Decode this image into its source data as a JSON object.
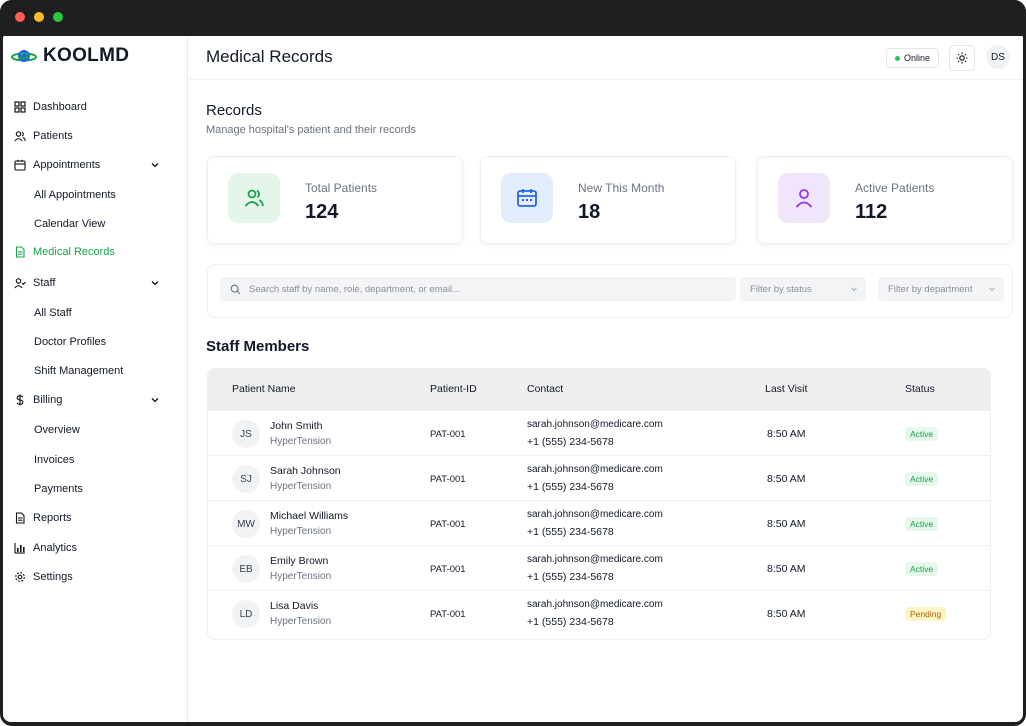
{
  "brand": {
    "name": "KOOLMD"
  },
  "sidebar": {
    "items": [
      {
        "label": "Dashboard",
        "icon": "grid-icon"
      },
      {
        "label": "Patients",
        "icon": "users-icon"
      },
      {
        "label": "Appointments",
        "icon": "calendar-icon",
        "children": [
          "All Appointments",
          "Calendar View"
        ]
      },
      {
        "label": "Medical Records",
        "icon": "file-icon",
        "active": true
      },
      {
        "label": "Staff",
        "icon": "user-check-icon",
        "children": [
          "All Staff",
          "Doctor Profiles",
          "Shift Management"
        ]
      },
      {
        "label": "Billing",
        "icon": "dollar-icon",
        "children": [
          "Overview",
          "Invoices",
          "Payments"
        ]
      },
      {
        "label": "Reports",
        "icon": "report-icon"
      },
      {
        "label": "Analytics",
        "icon": "chart-icon"
      },
      {
        "label": "Settings",
        "icon": "gear-icon"
      }
    ]
  },
  "header": {
    "title": "Medical Records",
    "status": "Online",
    "avatar": "DS"
  },
  "records": {
    "title": "Records",
    "subtitle": "Manage hospital's patient and their records"
  },
  "stats": [
    {
      "label": "Total Patients",
      "value": "124",
      "color": "#16a34a"
    },
    {
      "label": "New This Month",
      "value": "18",
      "color": "#2563eb"
    },
    {
      "label": "Active Patients",
      "value": "112",
      "color": "#9333ea"
    }
  ],
  "filters": {
    "search_placeholder": "Search staff by name, role, department, or email...",
    "status": "Filter by status",
    "department": "Filter by department"
  },
  "members": {
    "title": "Staff Members",
    "columns": [
      "Patient Name",
      "Patient-ID",
      "Contact",
      "Last Visit",
      "Status"
    ],
    "rows": [
      {
        "initials": "JS",
        "name": "John Smith",
        "condition": "HyperTension",
        "id": "PAT-001",
        "email": "sarah.johnson@medicare.com",
        "phone": "+1 (555) 234-5678",
        "last_visit": "8:50 AM",
        "status": "Active"
      },
      {
        "initials": "SJ",
        "name": "Sarah Johnson",
        "condition": "HyperTension",
        "id": "PAT-001",
        "email": "sarah.johnson@medicare.com",
        "phone": "+1 (555) 234-5678",
        "last_visit": "8:50 AM",
        "status": "Active"
      },
      {
        "initials": "MW",
        "name": "Michael Williams",
        "condition": "HyperTension",
        "id": "PAT-001",
        "email": "sarah.johnson@medicare.com",
        "phone": "+1 (555) 234-5678",
        "last_visit": "8:50 AM",
        "status": "Active"
      },
      {
        "initials": "EB",
        "name": "Emily Brown",
        "condition": "HyperTension",
        "id": "PAT-001",
        "email": "sarah.johnson@medicare.com",
        "phone": "+1 (555) 234-5678",
        "last_visit": "8:50 AM",
        "status": "Active"
      },
      {
        "initials": "LD",
        "name": "Lisa Davis",
        "condition": "HyperTension",
        "id": "PAT-001",
        "email": "sarah.johnson@medicare.com",
        "phone": "+1 (555) 234-5678",
        "last_visit": "8:50 AM",
        "status": "Pending"
      }
    ]
  }
}
